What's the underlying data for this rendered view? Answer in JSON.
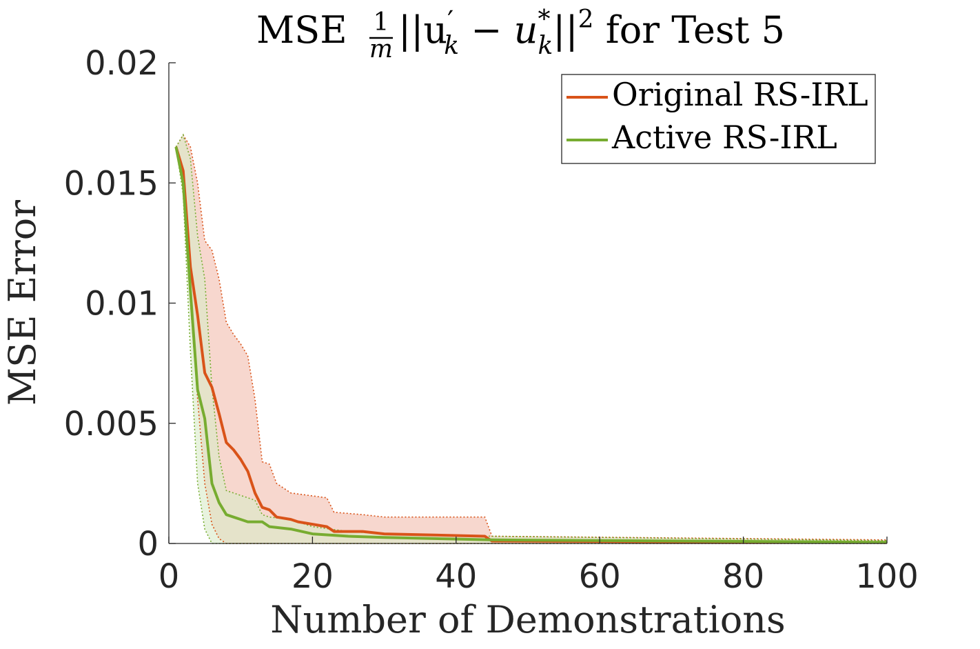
{
  "chart_data": {
    "type": "line",
    "title": {
      "prefix": "MSE ",
      "frac_num": "1",
      "frac_den": "m",
      "expr_a": "||u",
      "expr_a_sub": "k",
      "expr_a_prime": "′",
      "expr_minus": " − ",
      "expr_b": "u",
      "expr_b_sub": "k",
      "expr_b_sup": "*",
      "expr_close": "||",
      "expr_close_sup": "2",
      "suffix": " for Test 5"
    },
    "xlabel": "Number of Demonstrations",
    "ylabel": "MSE Error",
    "xlim": [
      0,
      100
    ],
    "ylim": [
      0,
      0.02
    ],
    "x_ticks": [
      0,
      20,
      40,
      60,
      80,
      100
    ],
    "x_tick_labels": [
      "0",
      "20",
      "40",
      "60",
      "80",
      "100"
    ],
    "y_ticks": [
      0,
      0.005,
      0.01,
      0.015,
      0.02
    ],
    "y_tick_labels": [
      "0",
      "0.005",
      "0.01",
      "0.015",
      "0.02"
    ],
    "grid": false,
    "legend_position": "top-right",
    "series": [
      {
        "name": "Original RS-IRL",
        "color": "#d95319",
        "fill": "#f6d0c5",
        "mean": [
          [
            1,
            0.0165
          ],
          [
            2,
            0.0155
          ],
          [
            3,
            0.0115
          ],
          [
            4,
            0.0095
          ],
          [
            5,
            0.0071
          ],
          [
            6,
            0.0065
          ],
          [
            7,
            0.0054
          ],
          [
            8,
            0.0042
          ],
          [
            9,
            0.0039
          ],
          [
            10,
            0.0035
          ],
          [
            11,
            0.003
          ],
          [
            12,
            0.0021
          ],
          [
            13,
            0.0015
          ],
          [
            14,
            0.0014
          ],
          [
            15,
            0.0011
          ],
          [
            17,
            0.001
          ],
          [
            18,
            0.0009
          ],
          [
            22,
            0.0007
          ],
          [
            23,
            0.0005
          ],
          [
            27,
            0.0005
          ],
          [
            30,
            0.0004
          ],
          [
            44,
            0.0003
          ],
          [
            45,
            0.0001
          ],
          [
            100,
            4e-05
          ]
        ],
        "upper": [
          [
            1,
            0.0165
          ],
          [
            2,
            0.017
          ],
          [
            3,
            0.0165
          ],
          [
            4,
            0.015
          ],
          [
            5,
            0.0126
          ],
          [
            6,
            0.0122
          ],
          [
            7,
            0.011
          ],
          [
            8,
            0.0092
          ],
          [
            9,
            0.0087
          ],
          [
            10,
            0.0083
          ],
          [
            11,
            0.0078
          ],
          [
            12,
            0.006
          ],
          [
            13,
            0.0034
          ],
          [
            14,
            0.0033
          ],
          [
            15,
            0.0025
          ],
          [
            17,
            0.0021
          ],
          [
            22,
            0.0019
          ],
          [
            23,
            0.0013
          ],
          [
            27,
            0.0012
          ],
          [
            30,
            0.0011
          ],
          [
            44,
            0.0011
          ],
          [
            45,
            0.0003
          ],
          [
            100,
            0.00015
          ]
        ],
        "lower": [
          [
            1,
            0.0165
          ],
          [
            2,
            0.015
          ],
          [
            3,
            0.01
          ],
          [
            4,
            0.006
          ],
          [
            5,
            0.0025
          ],
          [
            6,
            0.0008
          ],
          [
            7,
            0.0002
          ],
          [
            8,
            0.0
          ],
          [
            100,
            0.0
          ]
        ]
      },
      {
        "name": "Active RS-IRL",
        "color": "#77ac30",
        "fill": "#d9ebc8",
        "mean": [
          [
            1,
            0.0165
          ],
          [
            2,
            0.015
          ],
          [
            3,
            0.0105
          ],
          [
            4,
            0.0064
          ],
          [
            5,
            0.0052
          ],
          [
            6,
            0.0025
          ],
          [
            7,
            0.0017
          ],
          [
            8,
            0.0012
          ],
          [
            9,
            0.0011
          ],
          [
            10,
            0.001
          ],
          [
            11,
            0.0009
          ],
          [
            13,
            0.0009
          ],
          [
            14,
            0.0007
          ],
          [
            17,
            0.0006
          ],
          [
            20,
            0.0004
          ],
          [
            25,
            0.0003
          ],
          [
            30,
            0.00025
          ],
          [
            45,
            0.00015
          ],
          [
            100,
            5e-05
          ]
        ],
        "upper": [
          [
            1,
            0.0165
          ],
          [
            2,
            0.017
          ],
          [
            3,
            0.016
          ],
          [
            4,
            0.0128
          ],
          [
            5,
            0.011
          ],
          [
            6,
            0.0065
          ],
          [
            7,
            0.0036
          ],
          [
            8,
            0.0022
          ],
          [
            12,
            0.0018
          ],
          [
            13,
            0.0012
          ],
          [
            14,
            0.0011
          ],
          [
            17,
            0.001
          ],
          [
            20,
            0.0007
          ],
          [
            25,
            0.0005
          ],
          [
            30,
            0.0004
          ],
          [
            45,
            0.0003
          ],
          [
            100,
            0.00012
          ]
        ],
        "lower": [
          [
            1,
            0.0165
          ],
          [
            2,
            0.0145
          ],
          [
            3,
            0.008
          ],
          [
            4,
            0.0025
          ],
          [
            5,
            0.0006
          ],
          [
            6,
            0.0
          ],
          [
            100,
            0.0
          ]
        ]
      }
    ]
  }
}
